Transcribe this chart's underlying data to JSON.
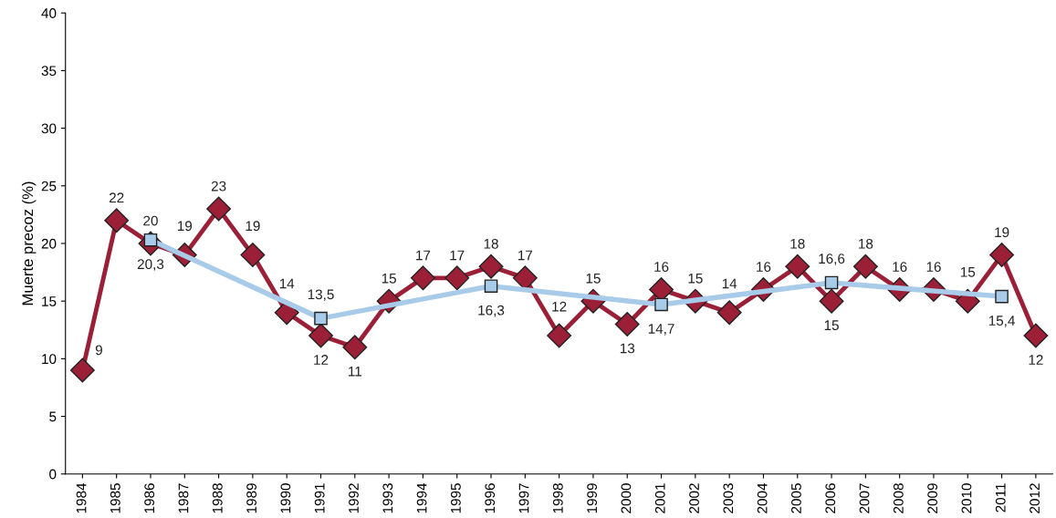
{
  "chart_data": {
    "type": "line",
    "ylabel": "Muerte precoz (%)",
    "categories": [
      "1984",
      "1985",
      "1986",
      "1987",
      "1988",
      "1989",
      "1990",
      "1991",
      "1992",
      "1993",
      "1994",
      "1995",
      "1996",
      "1997",
      "1998",
      "1999",
      "2000",
      "2001",
      "2002",
      "2003",
      "2004",
      "2005",
      "2006",
      "2007",
      "2008",
      "2009",
      "2010",
      "2011",
      "2012"
    ],
    "series": [
      {
        "color": "#9b1f36",
        "marker": "diamond",
        "values": [
          9,
          22,
          20,
          19,
          23,
          19,
          14,
          12,
          11,
          15,
          17,
          17,
          18,
          17,
          12,
          15,
          13,
          16,
          15,
          14,
          16,
          18,
          15,
          18,
          16,
          16,
          15,
          19,
          12
        ],
        "value_labels": [
          "9",
          "22",
          "20",
          "19",
          "23",
          "19",
          "14",
          "12",
          "11",
          "15",
          "17",
          "17",
          "18",
          "17",
          "12",
          "15",
          "13",
          "16",
          "15",
          "14",
          "16",
          "18",
          "15",
          "18",
          "16",
          "16",
          "15",
          "19",
          "12"
        ]
      },
      {
        "color": "#a9cbea",
        "marker": "square",
        "values": [
          null,
          null,
          20.3,
          null,
          null,
          null,
          null,
          13.5,
          null,
          null,
          null,
          null,
          16.3,
          null,
          null,
          null,
          null,
          14.7,
          null,
          null,
          null,
          null,
          16.6,
          null,
          null,
          null,
          null,
          15.4,
          null
        ],
        "value_labels": [
          null,
          null,
          "20,3",
          null,
          null,
          null,
          null,
          "13,5",
          null,
          null,
          null,
          null,
          "16,3",
          null,
          null,
          null,
          null,
          "14,7",
          null,
          null,
          null,
          null,
          "16,6",
          null,
          null,
          null,
          null,
          "15,4",
          null
        ]
      }
    ],
    "ylim": [
      0,
      40
    ],
    "yticks": [
      0,
      5,
      10,
      15,
      20,
      25,
      30,
      35,
      40
    ],
    "grid": false,
    "legend": false
  }
}
